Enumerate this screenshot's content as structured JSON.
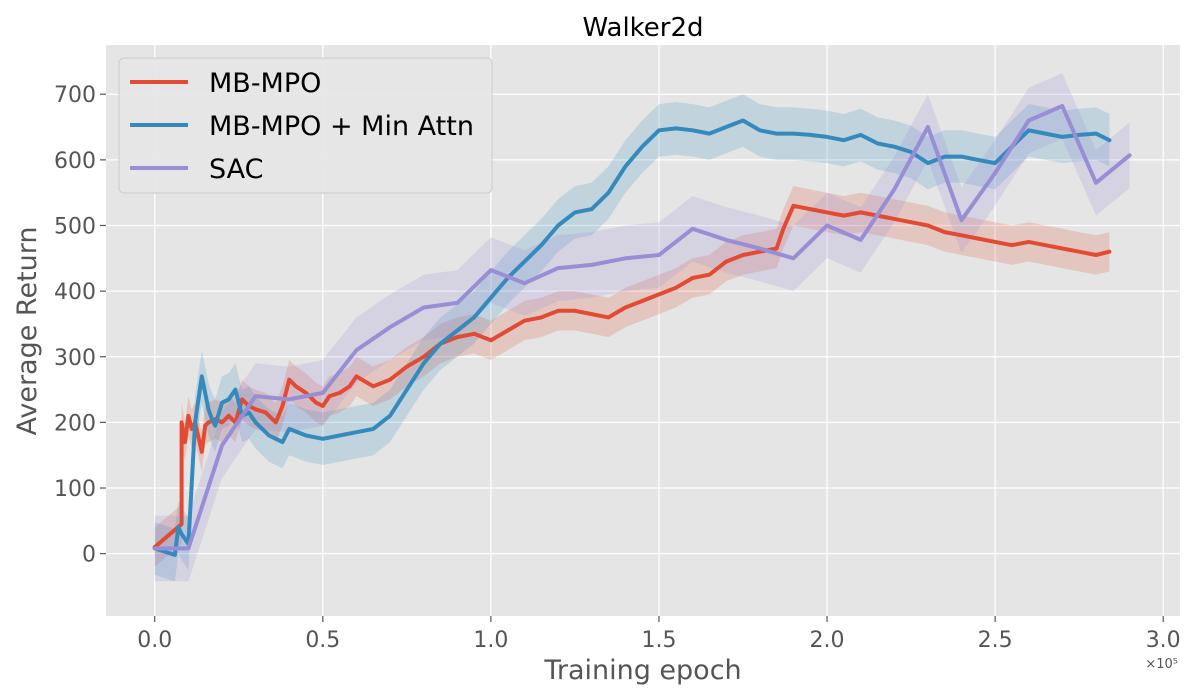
{
  "chart_data": {
    "type": "line",
    "title": "Walker2d",
    "xlabel": "Training epoch",
    "ylabel": "Average Return",
    "x_multiplier_label": "×10⁵",
    "xlim": [
      -0.145,
      3.05
    ],
    "ylim": [
      -95,
      775
    ],
    "xticks": [
      0.0,
      0.5,
      1.0,
      1.5,
      2.0,
      2.5,
      3.0
    ],
    "xtick_labels": [
      "0.0",
      "0.5",
      "1.0",
      "1.5",
      "2.0",
      "2.5",
      "3.0"
    ],
    "yticks": [
      0,
      100,
      200,
      300,
      400,
      500,
      600,
      700
    ],
    "ytick_labels": [
      "0",
      "100",
      "200",
      "300",
      "400",
      "500",
      "600",
      "700"
    ],
    "grid": true,
    "legend_position": "top-left",
    "series": [
      {
        "name": "MB-MPO",
        "color": "#E24A33",
        "band": 30,
        "x": [
          0.0,
          0.08,
          0.08,
          0.09,
          0.1,
          0.11,
          0.12,
          0.14,
          0.15,
          0.16,
          0.18,
          0.2,
          0.22,
          0.24,
          0.26,
          0.28,
          0.3,
          0.33,
          0.36,
          0.38,
          0.4,
          0.42,
          0.45,
          0.48,
          0.5,
          0.52,
          0.55,
          0.58,
          0.6,
          0.65,
          0.7,
          0.75,
          0.8,
          0.85,
          0.9,
          0.95,
          1.0,
          1.05,
          1.1,
          1.15,
          1.2,
          1.25,
          1.3,
          1.35,
          1.4,
          1.45,
          1.5,
          1.55,
          1.6,
          1.65,
          1.7,
          1.75,
          1.8,
          1.85,
          1.87,
          1.9,
          1.95,
          2.0,
          2.05,
          2.1,
          2.15,
          2.2,
          2.25,
          2.3,
          2.35,
          2.4,
          2.45,
          2.5,
          2.55,
          2.6,
          2.65,
          2.7,
          2.75,
          2.8,
          2.84
        ],
        "values": [
          10,
          45,
          200,
          170,
          210,
          190,
          200,
          155,
          195,
          200,
          205,
          200,
          210,
          200,
          235,
          225,
          220,
          215,
          200,
          225,
          265,
          255,
          245,
          230,
          225,
          240,
          245,
          255,
          270,
          255,
          265,
          285,
          300,
          320,
          330,
          335,
          325,
          340,
          355,
          360,
          370,
          370,
          365,
          360,
          375,
          385,
          395,
          405,
          420,
          425,
          445,
          455,
          460,
          465,
          495,
          530,
          525,
          520,
          515,
          520,
          515,
          510,
          505,
          500,
          490,
          485,
          480,
          475,
          470,
          475,
          470,
          465,
          460,
          455,
          460
        ]
      },
      {
        "name": "MB-MPO + Min Attn",
        "color": "#348ABD",
        "band": 40,
        "x": [
          0.0,
          0.06,
          0.07,
          0.08,
          0.1,
          0.12,
          0.14,
          0.16,
          0.17,
          0.18,
          0.2,
          0.22,
          0.24,
          0.26,
          0.28,
          0.3,
          0.32,
          0.34,
          0.36,
          0.38,
          0.4,
          0.45,
          0.5,
          0.55,
          0.6,
          0.65,
          0.7,
          0.75,
          0.8,
          0.85,
          0.9,
          0.95,
          1.0,
          1.05,
          1.1,
          1.15,
          1.2,
          1.25,
          1.3,
          1.35,
          1.4,
          1.45,
          1.5,
          1.55,
          1.6,
          1.65,
          1.7,
          1.75,
          1.8,
          1.85,
          1.9,
          1.95,
          2.0,
          2.05,
          2.1,
          2.15,
          2.2,
          2.25,
          2.3,
          2.35,
          2.4,
          2.45,
          2.5,
          2.55,
          2.6,
          2.65,
          2.7,
          2.75,
          2.8,
          2.84
        ],
        "values": [
          8,
          -2,
          40,
          30,
          15,
          200,
          270,
          220,
          205,
          195,
          230,
          235,
          250,
          210,
          215,
          200,
          190,
          180,
          175,
          170,
          190,
          180,
          175,
          180,
          185,
          190,
          210,
          250,
          290,
          320,
          340,
          360,
          390,
          420,
          445,
          470,
          500,
          520,
          525,
          550,
          590,
          620,
          645,
          648,
          645,
          640,
          650,
          660,
          645,
          640,
          640,
          638,
          635,
          630,
          638,
          625,
          620,
          612,
          595,
          605,
          605,
          600,
          595,
          620,
          645,
          640,
          635,
          638,
          640,
          630
        ]
      },
      {
        "name": "SAC",
        "color": "#988ED5",
        "band": 50,
        "x": [
          0.0,
          0.1,
          0.2,
          0.3,
          0.4,
          0.5,
          0.6,
          0.7,
          0.8,
          0.9,
          1.0,
          1.1,
          1.2,
          1.3,
          1.4,
          1.5,
          1.6,
          1.7,
          1.8,
          1.9,
          2.0,
          2.1,
          2.2,
          2.3,
          2.4,
          2.5,
          2.6,
          2.7,
          2.8,
          2.9
        ],
        "values": [
          8,
          8,
          165,
          240,
          235,
          245,
          310,
          345,
          375,
          382,
          432,
          412,
          435,
          440,
          450,
          455,
          495,
          478,
          465,
          450,
          500,
          478,
          555,
          650,
          508,
          580,
          660,
          682,
          565,
          607
        ]
      }
    ]
  }
}
